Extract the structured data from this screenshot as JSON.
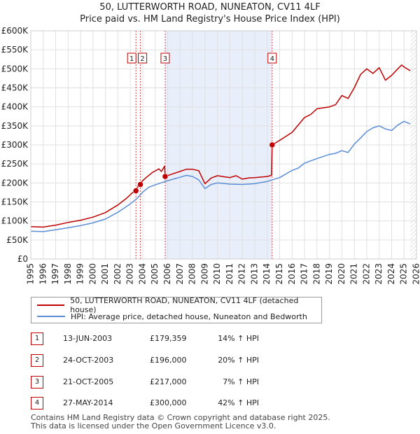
{
  "header": {
    "title": "50, LUTTERWORTH ROAD, NUNEATON, CV11 4LF",
    "subtitle": "Price paid vs. HM Land Registry's House Price Index (HPI)"
  },
  "chart_data": {
    "type": "line",
    "ylim": [
      0,
      600000
    ],
    "xlim": [
      1995.0,
      2026.0
    ],
    "y_ticks": [
      0,
      50000,
      100000,
      150000,
      200000,
      250000,
      300000,
      350000,
      400000,
      450000,
      500000,
      550000,
      600000
    ],
    "y_tick_labels": [
      "£0",
      "£50K",
      "£100K",
      "£150K",
      "£200K",
      "£250K",
      "£300K",
      "£350K",
      "£400K",
      "£450K",
      "£500K",
      "£550K",
      "£600K"
    ],
    "x_ticks": [
      1995,
      1996,
      1997,
      1998,
      1999,
      2000,
      2001,
      2002,
      2003,
      2004,
      2005,
      2006,
      2007,
      2008,
      2009,
      2010,
      2011,
      2012,
      2013,
      2014,
      2015,
      2016,
      2017,
      2018,
      2019,
      2020,
      2021,
      2022,
      2023,
      2024,
      2025,
      2026
    ],
    "x_tick_labels": [
      "1995",
      "1996",
      "1997",
      "1998",
      "1999",
      "2000",
      "2001",
      "2002",
      "2003",
      "2004",
      "2005",
      "2006",
      "2007",
      "2008",
      "2009",
      "2010",
      "2011",
      "2012",
      "2013",
      "2014",
      "2015",
      "2016",
      "2017",
      "2018",
      "2019",
      "2020",
      "2021",
      "2022",
      "2023",
      "2024",
      "2025",
      "2026"
    ],
    "shaded_range": [
      2005.8,
      2014.4
    ],
    "data_end": 2025.5,
    "series": [
      {
        "name": "50, LUTTERWORTH ROAD, NUNEATON, CV11 4LF (detached house)",
        "color": "#c00000",
        "x": [
          1995.0,
          1996.0,
          1997.0,
          1998.0,
          1999.0,
          2000.0,
          2001.0,
          2002.0,
          2002.7,
          2003.1,
          2003.45,
          2003.8,
          2004.3,
          2004.8,
          2005.3,
          2005.5,
          2005.75,
          2005.8,
          2006.5,
          2007.5,
          2008.0,
          2008.5,
          2009.0,
          2009.5,
          2010.0,
          2011.0,
          2011.5,
          2012.0,
          2012.5,
          2013.0,
          2014.0,
          2014.35,
          2014.4,
          2015.0,
          2016.0,
          2017.0,
          2017.5,
          2018.0,
          2019.0,
          2019.5,
          2020.0,
          2020.5,
          2021.0,
          2021.5,
          2022.0,
          2022.5,
          2023.0,
          2023.5,
          2024.0,
          2024.5,
          2024.8,
          2025.0,
          2025.5
        ],
        "values": [
          85000,
          84000,
          89000,
          96000,
          102000,
          110000,
          122000,
          142000,
          160000,
          172000,
          182000,
          200000,
          215000,
          228000,
          237000,
          230000,
          244000,
          217000,
          225000,
          236000,
          236000,
          232000,
          198000,
          213000,
          219000,
          214000,
          219000,
          210000,
          213000,
          214000,
          217000,
          220000,
          300000,
          312000,
          333000,
          372000,
          380000,
          395000,
          400000,
          406000,
          430000,
          422000,
          450000,
          485000,
          500000,
          488000,
          503000,
          470000,
          483000,
          500000,
          510000,
          505000,
          495000
        ]
      },
      {
        "name": "HPI: Average price, detached house, Nuneaton and Bedworth",
        "color": "#5b8dd6",
        "x": [
          1995.0,
          1996.0,
          1997.0,
          1998.0,
          1999.0,
          2000.0,
          2001.0,
          2002.0,
          2003.0,
          2003.5,
          2004.0,
          2004.5,
          2005.0,
          2006.0,
          2007.0,
          2007.5,
          2008.0,
          2008.5,
          2009.0,
          2009.5,
          2010.0,
          2011.0,
          2012.0,
          2013.0,
          2014.0,
          2015.0,
          2016.0,
          2016.5,
          2017.0,
          2018.0,
          2019.0,
          2019.5,
          2020.0,
          2020.5,
          2021.0,
          2021.5,
          2022.0,
          2022.5,
          2023.0,
          2023.5,
          2024.0,
          2024.5,
          2025.0,
          2025.5
        ],
        "values": [
          73000,
          72000,
          77000,
          82000,
          88000,
          95000,
          105000,
          123000,
          145000,
          158000,
          176000,
          189000,
          195000,
          206000,
          215000,
          220000,
          217000,
          208000,
          185000,
          196000,
          200000,
          197000,
          196000,
          198000,
          204000,
          214000,
          233000,
          239000,
          252000,
          264000,
          275000,
          278000,
          285000,
          280000,
          302000,
          318000,
          335000,
          345000,
          350000,
          342000,
          338000,
          352000,
          362000,
          355000
        ]
      }
    ],
    "sale_markers": [
      {
        "label": "1",
        "x": 2003.45,
        "value": 179359
      },
      {
        "label": "2",
        "x": 2003.81,
        "value": 196000
      },
      {
        "label": "3",
        "x": 2005.8,
        "value": 217000
      },
      {
        "label": "4",
        "x": 2014.4,
        "value": 300000
      }
    ]
  },
  "legend": {
    "property_label": "50, LUTTERWORTH ROAD, NUNEATON, CV11 4LF (detached house)",
    "hpi_label": "HPI: Average price, detached house, Nuneaton and Bedworth"
  },
  "transactions": [
    {
      "num": "1",
      "date": "13-JUN-2003",
      "price": "£179,359",
      "hpi": "14% ↑ HPI"
    },
    {
      "num": "2",
      "date": "24-OCT-2003",
      "price": "£196,000",
      "hpi": "20% ↑ HPI"
    },
    {
      "num": "3",
      "date": "21-OCT-2005",
      "price": "£217,000",
      "hpi": "7% ↑ HPI"
    },
    {
      "num": "4",
      "date": "27-MAY-2014",
      "price": "£300,000",
      "hpi": "42% ↑ HPI"
    }
  ],
  "footer": {
    "line1": "Contains HM Land Registry data © Crown copyright and database right 2025.",
    "line2": "This data is licensed under the Open Government Licence v3.0."
  }
}
